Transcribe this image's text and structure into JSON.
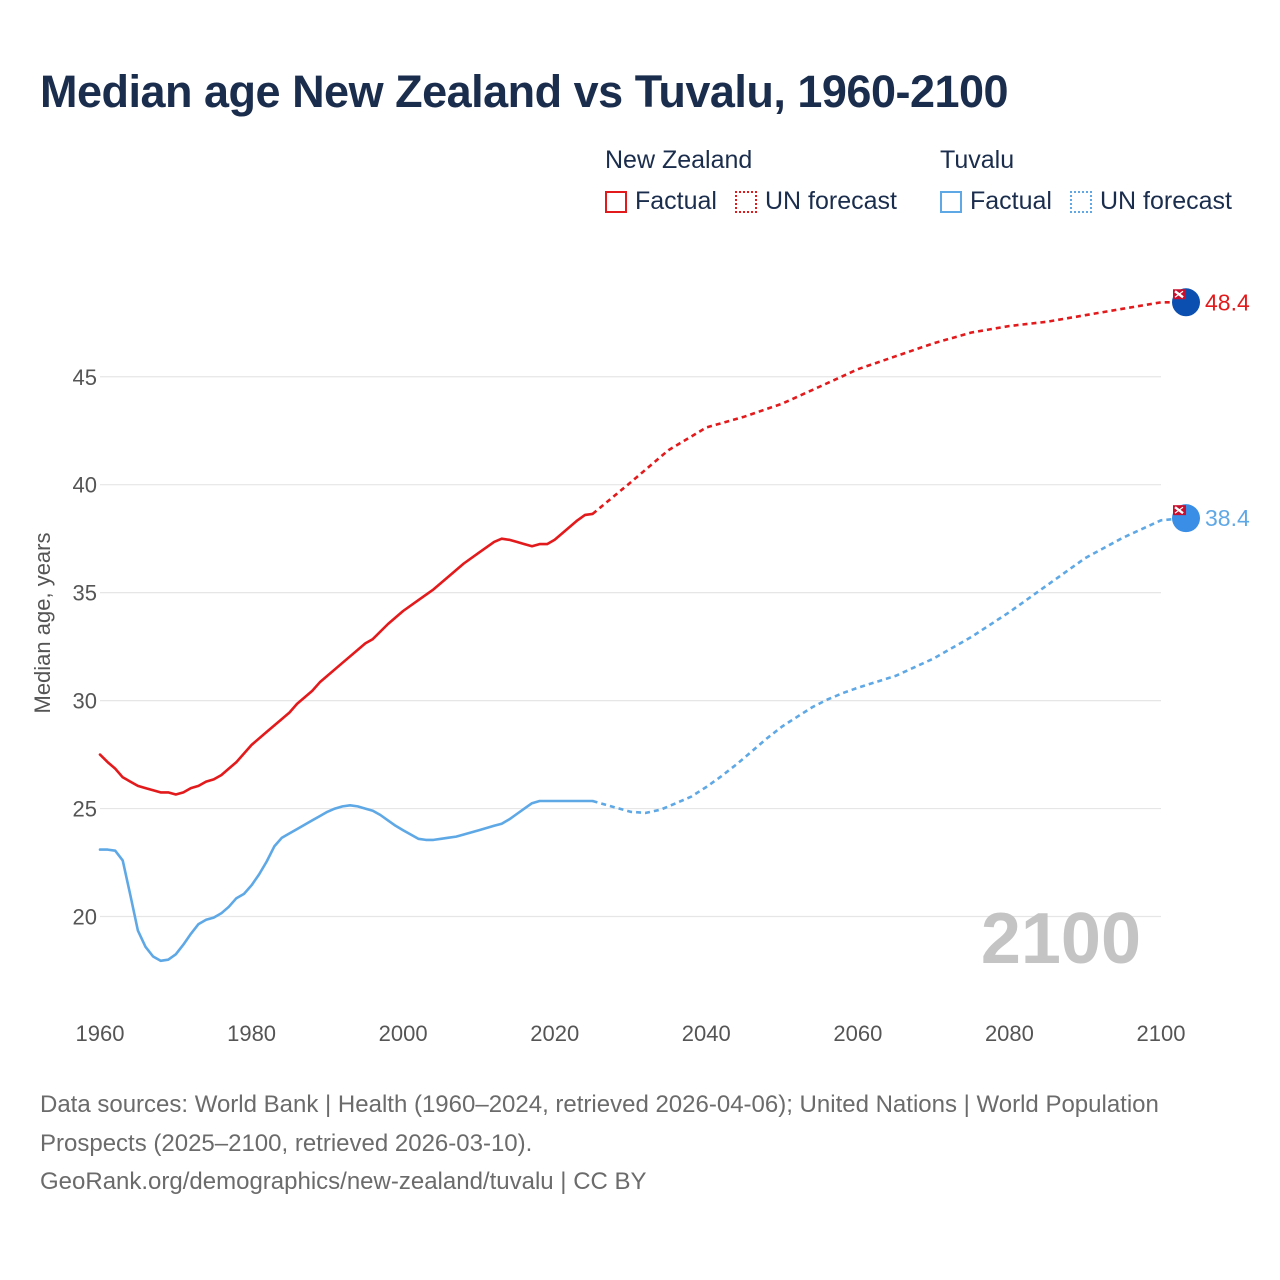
{
  "title": "Median age New Zealand vs Tuvalu, 1960-2100",
  "legend": {
    "groups": [
      {
        "name": "New Zealand",
        "color": "#e31a1c",
        "factual_label": "Factual",
        "forecast_label": "UN forecast"
      },
      {
        "name": "Tuvalu",
        "color": "#5fa8e6",
        "factual_label": "Factual",
        "forecast_label": "UN forecast"
      }
    ]
  },
  "footer": {
    "sources": "Data sources: World Bank | Health (1960–2024, retrieved 2026-04-06); United Nations | World Population Prospects (2025–2100, retrieved 2026-03-10).",
    "credit": "GeoRank.org/demographics/new-zealand/tuvalu | CC BY"
  },
  "chart_data": {
    "type": "line",
    "title": "Median age New Zealand vs Tuvalu, 1960-2100",
    "xlabel": "",
    "ylabel": "Median age, years",
    "xlim": [
      1960,
      2100
    ],
    "ylim": [
      15.3,
      50.5
    ],
    "xticks": [
      1960,
      1980,
      2000,
      2020,
      2040,
      2060,
      2080,
      2100
    ],
    "yticks": [
      20,
      25,
      30,
      35,
      40,
      45
    ],
    "grid": true,
    "year_watermark": "2100",
    "series": [
      {
        "name": "New Zealand",
        "color": "#e31a1c",
        "end_label": "48.4",
        "factual": {
          "x": [
            1960,
            1961,
            1962,
            1963,
            1964,
            1965,
            1966,
            1967,
            1968,
            1969,
            1970,
            1971,
            1972,
            1973,
            1974,
            1975,
            1976,
            1977,
            1978,
            1979,
            1980,
            1982,
            1984,
            1985,
            1986,
            1987,
            1988,
            1989,
            1990,
            1992,
            1994,
            1995,
            1996,
            1998,
            2000,
            2002,
            2004,
            2006,
            2008,
            2010,
            2012,
            2013,
            2014,
            2015,
            2016,
            2017,
            2018,
            2019,
            2020,
            2021,
            2022,
            2023,
            2024,
            2025
          ],
          "y": [
            27.5,
            27.15,
            26.85,
            26.45,
            26.25,
            26.05,
            25.95,
            25.85,
            25.75,
            25.75,
            25.65,
            25.75,
            25.95,
            26.05,
            26.25,
            26.35,
            26.55,
            26.85,
            27.15,
            27.55,
            27.95,
            28.55,
            29.15,
            29.45,
            29.85,
            30.15,
            30.45,
            30.85,
            31.15,
            31.75,
            32.35,
            32.65,
            32.85,
            33.55,
            34.15,
            34.65,
            35.15,
            35.75,
            36.35,
            36.85,
            37.35,
            37.5,
            37.45,
            37.35,
            37.25,
            37.15,
            37.25,
            37.25,
            37.45,
            37.75,
            38.05,
            38.35,
            38.6,
            38.65
          ]
        },
        "forecast": {
          "x": [
            2025,
            2030,
            2035,
            2040,
            2045,
            2050,
            2055,
            2060,
            2065,
            2070,
            2075,
            2080,
            2085,
            2090,
            2095,
            2100,
            2103
          ],
          "y": [
            38.65,
            40.1,
            41.6,
            42.65,
            43.15,
            43.75,
            44.55,
            45.35,
            45.95,
            46.55,
            47.05,
            47.35,
            47.55,
            47.85,
            48.15,
            48.45,
            48.45
          ]
        }
      },
      {
        "name": "Tuvalu",
        "color": "#5fa8e6",
        "end_label": "38.4",
        "factual": {
          "x": [
            1960,
            1961,
            1962,
            1963,
            1964,
            1965,
            1966,
            1967,
            1968,
            1969,
            1970,
            1971,
            1972,
            1973,
            1974,
            1975,
            1976,
            1977,
            1978,
            1979,
            1980,
            1981,
            1982,
            1983,
            1984,
            1985,
            1986,
            1987,
            1988,
            1989,
            1990,
            1991,
            1992,
            1993,
            1994,
            1995,
            1996,
            1997,
            1998,
            1999,
            2000,
            2001,
            2002,
            2003,
            2004,
            2005,
            2006,
            2007,
            2008,
            2010,
            2012,
            2013,
            2014,
            2015,
            2016,
            2017,
            2018,
            2019,
            2020,
            2021,
            2022,
            2023,
            2024,
            2025
          ],
          "y": [
            23.1,
            23.1,
            23.05,
            22.6,
            21.0,
            19.35,
            18.6,
            18.15,
            17.95,
            18.0,
            18.25,
            18.7,
            19.2,
            19.65,
            19.85,
            19.95,
            20.15,
            20.45,
            20.85,
            21.05,
            21.45,
            21.95,
            22.55,
            23.25,
            23.65,
            23.85,
            24.05,
            24.25,
            24.45,
            24.65,
            24.85,
            25.0,
            25.1,
            25.15,
            25.1,
            25.0,
            24.9,
            24.7,
            24.45,
            24.2,
            24.0,
            23.8,
            23.6,
            23.55,
            23.55,
            23.6,
            23.65,
            23.7,
            23.8,
            24.0,
            24.2,
            24.3,
            24.5,
            24.75,
            25.0,
            25.25,
            25.35,
            25.35,
            25.35,
            25.35,
            25.35,
            25.35,
            25.35,
            25.35
          ]
        },
        "forecast": {
          "x": [
            2025,
            2028,
            2030,
            2032,
            2034,
            2036,
            2038,
            2040,
            2042,
            2044,
            2046,
            2048,
            2050,
            2052,
            2054,
            2056,
            2058,
            2060,
            2065,
            2070,
            2075,
            2080,
            2085,
            2090,
            2095,
            2100,
            2103
          ],
          "y": [
            25.35,
            25.05,
            24.85,
            24.8,
            24.95,
            25.25,
            25.55,
            26.0,
            26.5,
            27.05,
            27.65,
            28.25,
            28.8,
            29.25,
            29.7,
            30.05,
            30.35,
            30.6,
            31.15,
            31.95,
            32.95,
            34.1,
            35.35,
            36.6,
            37.55,
            38.35,
            38.45
          ]
        }
      }
    ]
  }
}
